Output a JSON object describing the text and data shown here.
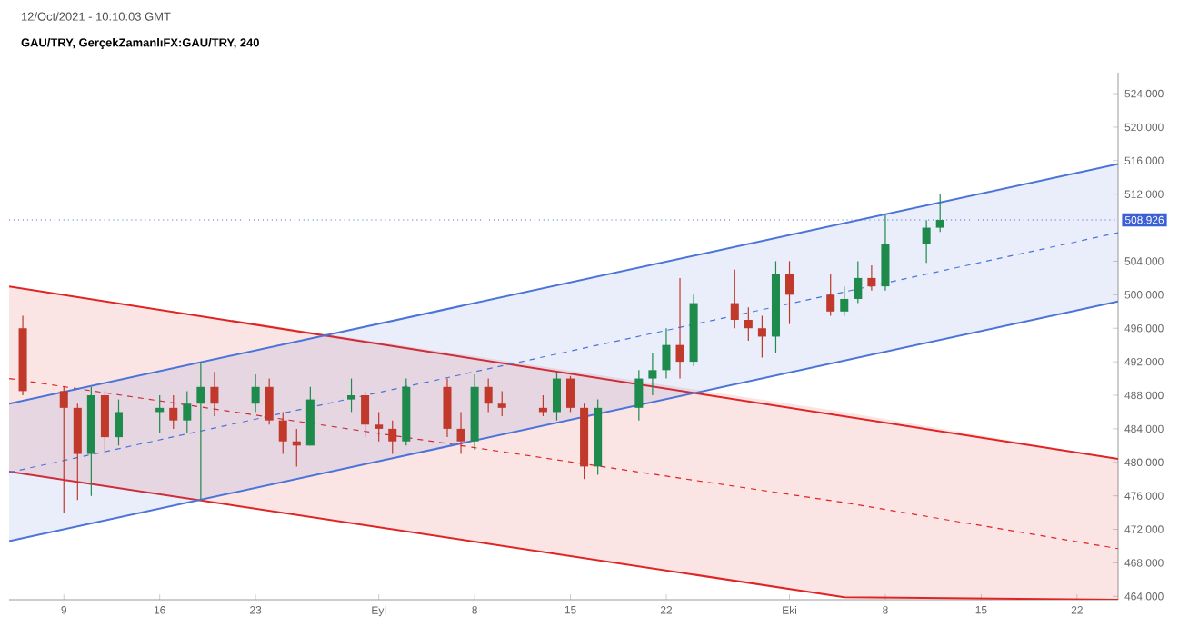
{
  "chart_data": {
    "type": "candlestick",
    "title": "12/Oct/2021 - 10:10:03 GMT",
    "subtitle": "GAU/TRY, GerçekZamanlıFX:GAU/TRY, 240",
    "x": [
      "2021-08-06",
      "2021-08-09",
      "2021-08-10",
      "2021-08-11",
      "2021-08-12",
      "2021-08-13",
      "2021-08-16",
      "2021-08-17",
      "2021-08-18",
      "2021-08-19",
      "2021-08-20",
      "2021-08-23",
      "2021-08-24",
      "2021-08-25",
      "2021-08-26",
      "2021-08-27",
      "2021-08-30",
      "2021-08-31",
      "2021-09-01",
      "2021-09-02",
      "2021-09-03",
      "2021-09-06",
      "2021-09-07",
      "2021-09-08",
      "2021-09-09",
      "2021-09-10",
      "2021-09-13",
      "2021-09-14",
      "2021-09-15",
      "2021-09-16",
      "2021-09-17",
      "2021-09-20",
      "2021-09-21",
      "2021-09-22",
      "2021-09-23",
      "2021-09-24",
      "2021-09-27",
      "2021-09-28",
      "2021-09-29",
      "2021-09-30",
      "2021-10-01",
      "2021-10-04",
      "2021-10-05",
      "2021-10-06",
      "2021-10-07",
      "2021-10-08",
      "2021-10-11",
      "2021-10-12"
    ],
    "ohlc": [
      [
        496,
        497.5,
        488,
        488.5
      ],
      [
        488.5,
        489,
        474,
        486.5
      ],
      [
        486.5,
        487,
        475.5,
        481
      ],
      [
        481,
        489,
        476,
        488
      ],
      [
        488,
        488.5,
        481,
        483
      ],
      [
        483,
        487.5,
        482,
        486
      ],
      [
        486,
        488,
        483.5,
        486.5
      ],
      [
        486.5,
        488,
        484,
        485
      ],
      [
        485,
        488.5,
        483.5,
        487
      ],
      [
        487,
        492,
        475.5,
        489
      ],
      [
        489,
        490.8,
        485.5,
        487
      ],
      [
        487,
        490.5,
        486,
        489
      ],
      [
        489,
        490,
        484.5,
        485
      ],
      [
        485,
        486,
        481,
        482.5
      ],
      [
        482.5,
        484,
        479.5,
        482
      ],
      [
        482,
        489,
        482,
        487.5
      ],
      [
        487.5,
        490,
        486,
        488
      ],
      [
        488,
        488.5,
        483,
        484.5
      ],
      [
        484.5,
        486,
        482.5,
        484
      ],
      [
        484,
        485,
        481,
        482.5
      ],
      [
        482.5,
        490,
        482,
        489
      ],
      [
        489,
        490,
        483,
        484
      ],
      [
        484,
        486,
        481,
        482.5
      ],
      [
        482.5,
        490.5,
        481.5,
        489
      ],
      [
        489,
        490,
        486,
        487
      ],
      [
        487,
        488.5,
        485.5,
        486.5
      ],
      [
        486.5,
        488,
        485.5,
        486
      ],
      [
        486,
        490.7,
        485,
        490
      ],
      [
        490,
        490.3,
        486,
        486.5
      ],
      [
        486.5,
        487,
        478,
        479.5
      ],
      [
        479.5,
        487.5,
        478.5,
        486.5
      ],
      [
        486.5,
        491,
        485,
        490
      ],
      [
        490,
        493,
        488,
        491
      ],
      [
        491,
        496,
        490,
        494
      ],
      [
        494,
        502,
        490,
        492
      ],
      [
        492,
        500,
        491.5,
        499
      ],
      [
        499,
        503,
        496,
        497
      ],
      [
        497,
        498.5,
        494.5,
        496
      ],
      [
        496,
        497.5,
        492.5,
        495
      ],
      [
        495,
        504,
        493,
        502.5
      ],
      [
        502.5,
        504,
        496.5,
        500
      ],
      [
        500,
        502.5,
        497.5,
        498
      ],
      [
        498,
        501,
        497.5,
        499.5
      ],
      [
        499.5,
        504,
        499,
        502
      ],
      [
        502,
        503.5,
        500.5,
        501
      ],
      [
        501,
        509.5,
        500.5,
        506
      ],
      [
        506,
        508.9,
        503.8,
        508
      ],
      [
        508,
        512,
        507.5,
        508.926
      ]
    ],
    "series": [
      {
        "type": "line",
        "x": [
          "2021-08-05",
          "2021-10-05",
          "2021-10-25"
        ],
        "values": [
          490,
          475.2,
          469.7
        ],
        "lower": [
          478.9,
          463.9,
          463.6
        ],
        "upper": [
          501,
          486,
          480.4
        ],
        "color": "#e02424",
        "line_style": "dashed"
      },
      {
        "type": "line",
        "x": [
          "2021-08-05",
          "2021-10-25"
        ],
        "values": [
          501,
          480.4
        ],
        "color": "#e02424",
        "line_style": "solid"
      },
      {
        "type": "line",
        "x": [
          "2021-08-05",
          "2021-10-05",
          "2021-10-25"
        ],
        "values": [
          478.9,
          463.9,
          463.6
        ],
        "color": "#e02424",
        "line_style": "solid"
      },
      {
        "type": "line",
        "x": [
          "2021-08-05",
          "2021-10-25"
        ],
        "values": [
          478.8,
          507.4
        ],
        "lower": [
          470.6,
          499.2
        ],
        "upper": [
          487,
          515.6
        ],
        "color": "#4a74d9",
        "line_style": "dashed"
      },
      {
        "type": "line",
        "x": [
          "2021-08-05",
          "2021-10-25"
        ],
        "values": [
          487,
          515.6
        ],
        "color": "#4a74d9",
        "line_style": "solid"
      },
      {
        "type": "line",
        "x": [
          "2021-08-05",
          "2021-10-25"
        ],
        "values": [
          470.6,
          499.2
        ],
        "color": "#4a74d9",
        "line_style": "solid"
      }
    ],
    "ref_lines": [
      {
        "axis": "y",
        "value": 508.926,
        "label": "508.926",
        "color": "#3b5fd4",
        "line_style": "dotted"
      }
    ],
    "xlim": [
      "2021-08-05",
      "2021-10-25"
    ],
    "ylim": [
      463.6,
      526.5
    ],
    "xticks": [
      {
        "value": "2021-08-09",
        "label": "9"
      },
      {
        "value": "2021-08-16",
        "label": "16"
      },
      {
        "value": "2021-08-23",
        "label": "23"
      },
      {
        "value": "2021-09-01",
        "label": "Eyl"
      },
      {
        "value": "2021-09-08",
        "label": "8"
      },
      {
        "value": "2021-09-15",
        "label": "15"
      },
      {
        "value": "2021-09-22",
        "label": "22"
      },
      {
        "value": "2021-10-01",
        "label": "Eki"
      },
      {
        "value": "2021-10-08",
        "label": "8"
      },
      {
        "value": "2021-10-15",
        "label": "15"
      },
      {
        "value": "2021-10-22",
        "label": "22"
      }
    ],
    "yticks": [
      {
        "value": 464,
        "label": "464.000"
      },
      {
        "value": 468,
        "label": "468.000"
      },
      {
        "value": 472,
        "label": "472.000"
      },
      {
        "value": 476,
        "label": "476.000"
      },
      {
        "value": 480,
        "label": "480.000"
      },
      {
        "value": 484,
        "label": "484.000"
      },
      {
        "value": 488,
        "label": "488.000"
      },
      {
        "value": 492,
        "label": "492.000"
      },
      {
        "value": 496,
        "label": "496.000"
      },
      {
        "value": 500,
        "label": "500.000"
      },
      {
        "value": 504,
        "label": "504.000"
      },
      {
        "value": 512,
        "label": "512.000"
      },
      {
        "value": 516,
        "label": "516.000"
      },
      {
        "value": 520,
        "label": "520.000"
      },
      {
        "value": 524,
        "label": "524.000"
      }
    ]
  }
}
